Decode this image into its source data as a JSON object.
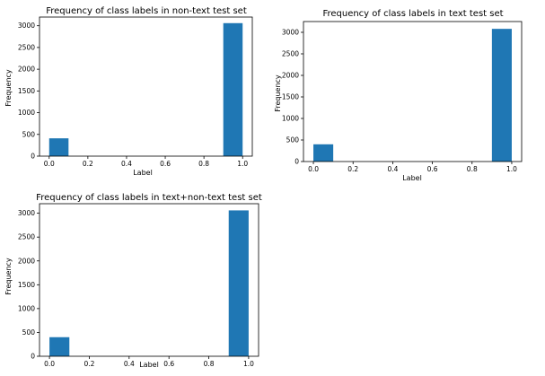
{
  "colors": {
    "bar": "#1f77b4",
    "axes": "#000000",
    "background": "#ffffff"
  },
  "chart_data": [
    {
      "type": "bar",
      "title": "Frequency of class labels in non-text test set",
      "xlabel": "Label",
      "ylabel": "Frequency",
      "xlim": [
        -0.05,
        1.05
      ],
      "ylim": [
        0,
        3200
      ],
      "xticks": [
        "0.0",
        "0.2",
        "0.4",
        "0.6",
        "0.8",
        "1.0"
      ],
      "yticks": [
        "0",
        "500",
        "1000",
        "1500",
        "2000",
        "2500",
        "3000"
      ],
      "bars": [
        {
          "x0": 0.0,
          "x1": 0.1,
          "value": 410
        },
        {
          "x0": 0.9,
          "x1": 1.0,
          "value": 3060
        }
      ],
      "grid": false
    },
    {
      "type": "bar",
      "title": "Frequency of class labels in text test set",
      "xlabel": "Label",
      "ylabel": "Frequency",
      "xlim": [
        -0.05,
        1.05
      ],
      "ylim": [
        0,
        3250
      ],
      "xticks": [
        "0.0",
        "0.2",
        "0.4",
        "0.6",
        "0.8",
        "1.0"
      ],
      "yticks": [
        "0",
        "500",
        "1000",
        "1500",
        "2000",
        "2500",
        "3000"
      ],
      "bars": [
        {
          "x0": 0.0,
          "x1": 0.1,
          "value": 400
        },
        {
          "x0": 0.9,
          "x1": 1.0,
          "value": 3080
        }
      ],
      "grid": false
    },
    {
      "type": "bar",
      "title": "Frequency of class labels in text+non-text test set",
      "xlabel": "Label",
      "ylabel": "Frequency",
      "xlim": [
        -0.05,
        1.05
      ],
      "ylim": [
        0,
        3200
      ],
      "xticks": [
        "0.0",
        "0.2",
        "0.4",
        "0.6",
        "0.8",
        "1.0"
      ],
      "yticks": [
        "0",
        "500",
        "1000",
        "1500",
        "2000",
        "2500",
        "3000"
      ],
      "bars": [
        {
          "x0": 0.0,
          "x1": 0.1,
          "value": 400
        },
        {
          "x0": 0.9,
          "x1": 1.0,
          "value": 3060
        }
      ],
      "grid": false
    }
  ]
}
